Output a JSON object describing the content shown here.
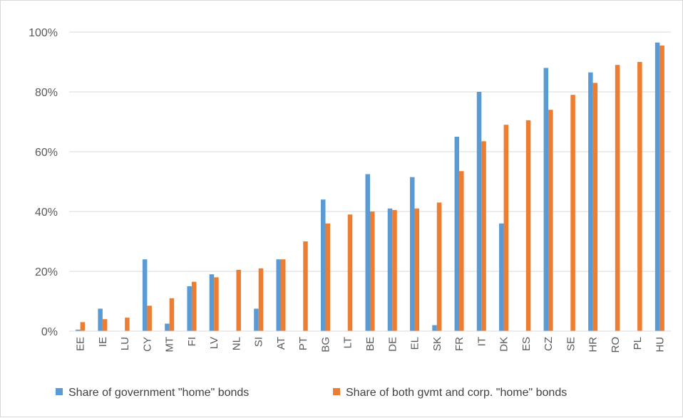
{
  "chart_data": {
    "type": "bar",
    "categories": [
      "EE",
      "IE",
      "LU",
      "CY",
      "MT",
      "FI",
      "LV",
      "NL",
      "SI",
      "AT",
      "PT",
      "BG",
      "LT",
      "BE",
      "DE",
      "EL",
      "SK",
      "FR",
      "IT",
      "DK",
      "ES",
      "CZ",
      "SE",
      "HR",
      "RO",
      "PL",
      "HU"
    ],
    "series": [
      {
        "name": "Share of government \"home\" bonds",
        "color": "#5b9bd5",
        "values": [
          0.5,
          7.5,
          null,
          24,
          2.5,
          15,
          19,
          null,
          7.5,
          24,
          null,
          44,
          null,
          52.5,
          41,
          51.5,
          2,
          65,
          80,
          36,
          null,
          88,
          null,
          86.5,
          null,
          null,
          96.5
        ]
      },
      {
        "name": "Share of both gvmt and corp. \"home\" bonds",
        "color": "#ed7d31",
        "values": [
          3,
          4,
          4.5,
          8.5,
          11,
          16.5,
          18,
          20.5,
          21,
          24,
          30,
          36,
          39,
          40,
          40.5,
          41,
          43,
          53.5,
          63.5,
          69,
          70.5,
          74,
          79,
          83,
          89,
          90,
          95.5
        ]
      }
    ],
    "yticks": [
      "0%",
      "20%",
      "40%",
      "60%",
      "80%",
      "100%"
    ],
    "ylim": [
      0,
      100
    ],
    "grid": true,
    "legend_position": "bottom",
    "title": "",
    "xlabel": "",
    "ylabel": ""
  }
}
